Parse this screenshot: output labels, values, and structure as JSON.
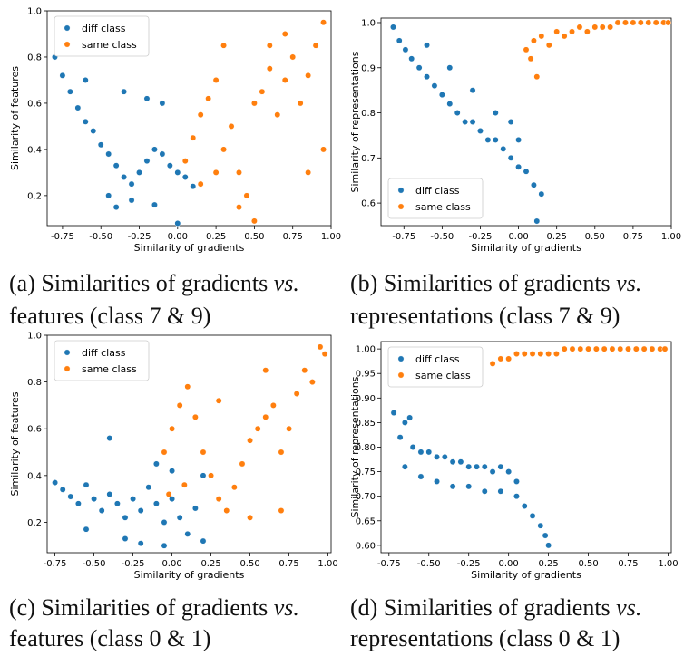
{
  "colors": {
    "diff": "#1f77b4",
    "same": "#ff7f0e",
    "legend_border": "#cccccc"
  },
  "captions": [
    {
      "label": "(a) Similarities of gradients",
      "vs": "vs.",
      "rest": "features (class 7 & 9)"
    },
    {
      "label": "(b) Similarities of gradients",
      "vs": "vs.",
      "rest": "representations (class 7 & 9)"
    },
    {
      "label": "(c) Similarities of gradients",
      "vs": "vs.",
      "rest": "features (class 0 & 1)"
    },
    {
      "label": "(d) Similarities of gradients",
      "vs": "vs.",
      "rest": "representations (class 0 & 1)"
    }
  ],
  "chart_data": [
    {
      "type": "scatter",
      "xlabel": "Similarity of gradients",
      "ylabel": "Similarity of features",
      "xlim": [
        -0.85,
        1.0
      ],
      "ylim": [
        0.07,
        1.0
      ],
      "xticks": [
        "-0.75",
        "-0.50",
        "-0.25",
        "0.00",
        "0.25",
        "0.50",
        "0.75",
        "1.00"
      ],
      "yticks": [
        "0.2",
        "0.4",
        "0.6",
        "0.8",
        "1.0"
      ],
      "legend": "upper-left",
      "series": [
        {
          "name": "diff class",
          "color": "#1f77b4",
          "points": [
            [
              -0.8,
              0.8
            ],
            [
              -0.75,
              0.72
            ],
            [
              -0.7,
              0.65
            ],
            [
              -0.65,
              0.58
            ],
            [
              -0.6,
              0.52
            ],
            [
              -0.55,
              0.48
            ],
            [
              -0.5,
              0.42
            ],
            [
              -0.45,
              0.38
            ],
            [
              -0.4,
              0.33
            ],
            [
              -0.35,
              0.28
            ],
            [
              -0.3,
              0.25
            ],
            [
              -0.25,
              0.3
            ],
            [
              -0.2,
              0.35
            ],
            [
              -0.15,
              0.4
            ],
            [
              -0.1,
              0.38
            ],
            [
              -0.05,
              0.33
            ],
            [
              0.0,
              0.3
            ],
            [
              0.05,
              0.28
            ],
            [
              -0.45,
              0.2
            ],
            [
              -0.4,
              0.15
            ],
            [
              -0.3,
              0.18
            ],
            [
              -0.6,
              0.7
            ],
            [
              -0.35,
              0.65
            ],
            [
              -0.2,
              0.62
            ],
            [
              -0.1,
              0.6
            ],
            [
              0.0,
              0.08
            ],
            [
              -0.15,
              0.16
            ],
            [
              0.1,
              0.24
            ]
          ]
        },
        {
          "name": "same class",
          "color": "#ff7f0e",
          "points": [
            [
              0.05,
              0.35
            ],
            [
              0.1,
              0.45
            ],
            [
              0.15,
              0.55
            ],
            [
              0.2,
              0.62
            ],
            [
              0.25,
              0.7
            ],
            [
              0.3,
              0.4
            ],
            [
              0.35,
              0.5
            ],
            [
              0.4,
              0.3
            ],
            [
              0.45,
              0.2
            ],
            [
              0.5,
              0.6
            ],
            [
              0.55,
              0.65
            ],
            [
              0.6,
              0.75
            ],
            [
              0.65,
              0.55
            ],
            [
              0.7,
              0.7
            ],
            [
              0.75,
              0.8
            ],
            [
              0.8,
              0.6
            ],
            [
              0.85,
              0.72
            ],
            [
              0.9,
              0.85
            ],
            [
              0.95,
              0.95
            ],
            [
              0.5,
              0.09
            ],
            [
              0.4,
              0.15
            ],
            [
              0.25,
              0.3
            ],
            [
              0.15,
              0.25
            ],
            [
              0.7,
              0.9
            ],
            [
              0.95,
              0.4
            ],
            [
              0.85,
              0.3
            ],
            [
              0.6,
              0.85
            ],
            [
              0.3,
              0.85
            ]
          ]
        }
      ]
    },
    {
      "type": "scatter",
      "xlabel": "Similarity of gradients",
      "ylabel": "Similarity of representations",
      "xlim": [
        -0.9,
        1.0
      ],
      "ylim": [
        0.55,
        1.01
      ],
      "xticks": [
        "-0.75",
        "-0.50",
        "-0.25",
        "0.00",
        "0.25",
        "0.50",
        "0.75",
        "1.00"
      ],
      "yticks": [
        "0.6",
        "0.7",
        "0.8",
        "0.9",
        "1.0"
      ],
      "legend": "lower-left",
      "series": [
        {
          "name": "diff class",
          "color": "#1f77b4",
          "points": [
            [
              -0.82,
              0.99
            ],
            [
              -0.78,
              0.96
            ],
            [
              -0.74,
              0.94
            ],
            [
              -0.7,
              0.92
            ],
            [
              -0.65,
              0.9
            ],
            [
              -0.6,
              0.88
            ],
            [
              -0.55,
              0.86
            ],
            [
              -0.5,
              0.84
            ],
            [
              -0.45,
              0.82
            ],
            [
              -0.4,
              0.8
            ],
            [
              -0.35,
              0.78
            ],
            [
              -0.3,
              0.78
            ],
            [
              -0.25,
              0.76
            ],
            [
              -0.2,
              0.74
            ],
            [
              -0.15,
              0.74
            ],
            [
              -0.1,
              0.72
            ],
            [
              -0.05,
              0.7
            ],
            [
              0.0,
              0.68
            ],
            [
              0.05,
              0.67
            ],
            [
              0.1,
              0.64
            ],
            [
              0.15,
              0.62
            ],
            [
              0.12,
              0.56
            ],
            [
              -0.6,
              0.95
            ],
            [
              -0.45,
              0.9
            ],
            [
              -0.3,
              0.85
            ],
            [
              -0.15,
              0.8
            ],
            [
              -0.05,
              0.78
            ],
            [
              0.0,
              0.74
            ]
          ]
        },
        {
          "name": "same class",
          "color": "#ff7f0e",
          "points": [
            [
              0.05,
              0.94
            ],
            [
              0.08,
              0.92
            ],
            [
              0.1,
              0.96
            ],
            [
              0.12,
              0.88
            ],
            [
              0.15,
              0.97
            ],
            [
              0.2,
              0.95
            ],
            [
              0.25,
              0.98
            ],
            [
              0.3,
              0.97
            ],
            [
              0.35,
              0.98
            ],
            [
              0.4,
              0.99
            ],
            [
              0.45,
              0.98
            ],
            [
              0.5,
              0.99
            ],
            [
              0.55,
              0.99
            ],
            [
              0.6,
              0.99
            ],
            [
              0.65,
              1.0
            ],
            [
              0.7,
              1.0
            ],
            [
              0.75,
              1.0
            ],
            [
              0.8,
              1.0
            ],
            [
              0.85,
              1.0
            ],
            [
              0.9,
              1.0
            ],
            [
              0.95,
              1.0
            ],
            [
              0.98,
              1.0
            ]
          ]
        }
      ]
    },
    {
      "type": "scatter",
      "xlabel": "Similarity of gradients",
      "ylabel": "Similarity of features",
      "xlim": [
        -0.8,
        1.02
      ],
      "ylim": [
        0.07,
        1.0
      ],
      "xticks": [
        "-0.75",
        "-0.50",
        "-0.25",
        "0.00",
        "0.25",
        "0.50",
        "0.75",
        "1.00"
      ],
      "yticks": [
        "0.2",
        "0.4",
        "0.6",
        "0.8",
        "1.0"
      ],
      "legend": "upper-left",
      "series": [
        {
          "name": "diff class",
          "color": "#1f77b4",
          "points": [
            [
              -0.75,
              0.37
            ],
            [
              -0.7,
              0.34
            ],
            [
              -0.65,
              0.31
            ],
            [
              -0.6,
              0.28
            ],
            [
              -0.55,
              0.36
            ],
            [
              -0.5,
              0.3
            ],
            [
              -0.45,
              0.25
            ],
            [
              -0.4,
              0.32
            ],
            [
              -0.35,
              0.28
            ],
            [
              -0.3,
              0.22
            ],
            [
              -0.25,
              0.3
            ],
            [
              -0.2,
              0.25
            ],
            [
              -0.15,
              0.35
            ],
            [
              -0.1,
              0.28
            ],
            [
              -0.05,
              0.2
            ],
            [
              0.0,
              0.3
            ],
            [
              0.05,
              0.22
            ],
            [
              0.1,
              0.15
            ],
            [
              0.15,
              0.26
            ],
            [
              0.2,
              0.12
            ],
            [
              -0.4,
              0.56
            ],
            [
              -0.1,
              0.45
            ],
            [
              0.0,
              0.42
            ],
            [
              -0.3,
              0.13
            ],
            [
              -0.2,
              0.11
            ],
            [
              -0.05,
              0.1
            ],
            [
              0.2,
              0.4
            ],
            [
              -0.55,
              0.17
            ]
          ]
        },
        {
          "name": "same class",
          "color": "#ff7f0e",
          "points": [
            [
              -0.05,
              0.5
            ],
            [
              0.0,
              0.6
            ],
            [
              0.05,
              0.7
            ],
            [
              0.1,
              0.78
            ],
            [
              0.15,
              0.65
            ],
            [
              0.2,
              0.5
            ],
            [
              0.25,
              0.4
            ],
            [
              0.3,
              0.3
            ],
            [
              0.35,
              0.25
            ],
            [
              0.4,
              0.35
            ],
            [
              0.45,
              0.45
            ],
            [
              0.5,
              0.55
            ],
            [
              0.55,
              0.6
            ],
            [
              0.6,
              0.65
            ],
            [
              0.65,
              0.7
            ],
            [
              0.7,
              0.5
            ],
            [
              0.75,
              0.6
            ],
            [
              0.8,
              0.75
            ],
            [
              0.85,
              0.85
            ],
            [
              0.9,
              0.8
            ],
            [
              0.95,
              0.95
            ],
            [
              0.98,
              0.92
            ],
            [
              -0.02,
              0.32
            ],
            [
              0.08,
              0.36
            ],
            [
              0.5,
              0.22
            ],
            [
              0.7,
              0.25
            ],
            [
              0.6,
              0.85
            ],
            [
              0.3,
              0.72
            ]
          ]
        }
      ]
    },
    {
      "type": "scatter",
      "xlabel": "Similarity of gradients",
      "ylabel": "Similarity of representations",
      "xlim": [
        -0.8,
        1.02
      ],
      "ylim": [
        0.585,
        1.015
      ],
      "xticks": [
        "-0.75",
        "-0.50",
        "-0.25",
        "0.00",
        "0.25",
        "0.50",
        "0.75",
        "1.00"
      ],
      "yticks": [
        "0.60",
        "0.65",
        "0.70",
        "0.75",
        "0.80",
        "0.85",
        "0.90",
        "0.95",
        "1.00"
      ],
      "legend": "upper-left",
      "series": [
        {
          "name": "diff class",
          "color": "#1f77b4",
          "points": [
            [
              -0.72,
              0.87
            ],
            [
              -0.68,
              0.82
            ],
            [
              -0.65,
              0.85
            ],
            [
              -0.62,
              0.86
            ],
            [
              -0.6,
              0.8
            ],
            [
              -0.55,
              0.79
            ],
            [
              -0.5,
              0.79
            ],
            [
              -0.45,
              0.78
            ],
            [
              -0.4,
              0.78
            ],
            [
              -0.35,
              0.77
            ],
            [
              -0.3,
              0.77
            ],
            [
              -0.25,
              0.76
            ],
            [
              -0.2,
              0.76
            ],
            [
              -0.15,
              0.76
            ],
            [
              -0.1,
              0.75
            ],
            [
              -0.05,
              0.76
            ],
            [
              0.0,
              0.75
            ],
            [
              0.05,
              0.73
            ],
            [
              -0.65,
              0.76
            ],
            [
              -0.55,
              0.74
            ],
            [
              -0.45,
              0.73
            ],
            [
              -0.35,
              0.72
            ],
            [
              -0.25,
              0.72
            ],
            [
              -0.15,
              0.71
            ],
            [
              -0.05,
              0.71
            ],
            [
              0.05,
              0.7
            ],
            [
              0.1,
              0.68
            ],
            [
              0.15,
              0.66
            ],
            [
              0.2,
              0.64
            ],
            [
              0.23,
              0.62
            ],
            [
              0.25,
              0.6
            ]
          ]
        },
        {
          "name": "same class",
          "color": "#ff7f0e",
          "points": [
            [
              -0.1,
              0.97
            ],
            [
              -0.05,
              0.98
            ],
            [
              0.0,
              0.98
            ],
            [
              0.05,
              0.99
            ],
            [
              0.1,
              0.99
            ],
            [
              0.15,
              0.99
            ],
            [
              0.2,
              0.99
            ],
            [
              0.25,
              0.99
            ],
            [
              0.3,
              0.99
            ],
            [
              0.35,
              1.0
            ],
            [
              0.4,
              1.0
            ],
            [
              0.45,
              1.0
            ],
            [
              0.5,
              1.0
            ],
            [
              0.55,
              1.0
            ],
            [
              0.6,
              1.0
            ],
            [
              0.65,
              1.0
            ],
            [
              0.7,
              1.0
            ],
            [
              0.75,
              1.0
            ],
            [
              0.8,
              1.0
            ],
            [
              0.85,
              1.0
            ],
            [
              0.9,
              1.0
            ],
            [
              0.95,
              1.0
            ],
            [
              0.98,
              1.0
            ]
          ]
        }
      ]
    }
  ]
}
